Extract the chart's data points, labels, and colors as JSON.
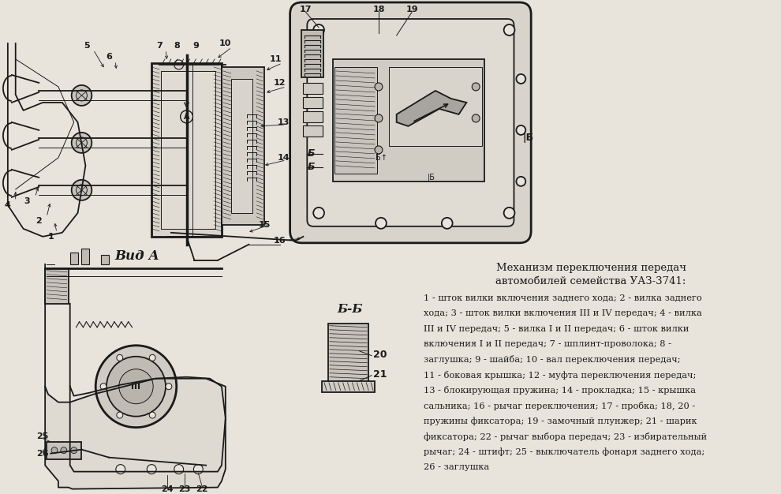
{
  "bg_color": "#e8e4dc",
  "text_color": "#1a1a1a",
  "title_line1": "Механизм переключения передач",
  "title_line2": "автомобилей семейства УАЗ-3741:",
  "desc_lines": [
    "1 - шток вилки включения заднего хода; 2 - вилка заднего",
    "хода; 3 - шток вилки включения III и IV передач; 4 - вилка",
    "III и IV передач; 5 - вилка I и II передач; 6 - шток вилки",
    "включения I и II передач; 7 - шплинт-проволока; 8 -",
    "заглушка; 9 - шайба; 10 - вал переключения передач;",
    "11 - боковая крышка; 12 - муфта переключения передач;",
    "13 - блокирующая пружина; 14 - прокладка; 15 - крышка",
    "сальника; 16 - рычаг переключения; 17 - пробка; 18, 20 -",
    "пружины фиксатора; 19 - замочный плунжер; 21 - шарик",
    "фиксатора; 22 - рычаг выбора передач; 23 - избирательный",
    "рычаг; 24 - штифт; 25 - выключатель фонаря заднего хода;",
    "26 - заглушка"
  ],
  "label_vid_a": "Вид А",
  "label_bb": "Б-Б",
  "figsize": [
    9.9,
    6.26
  ],
  "dpi": 100
}
